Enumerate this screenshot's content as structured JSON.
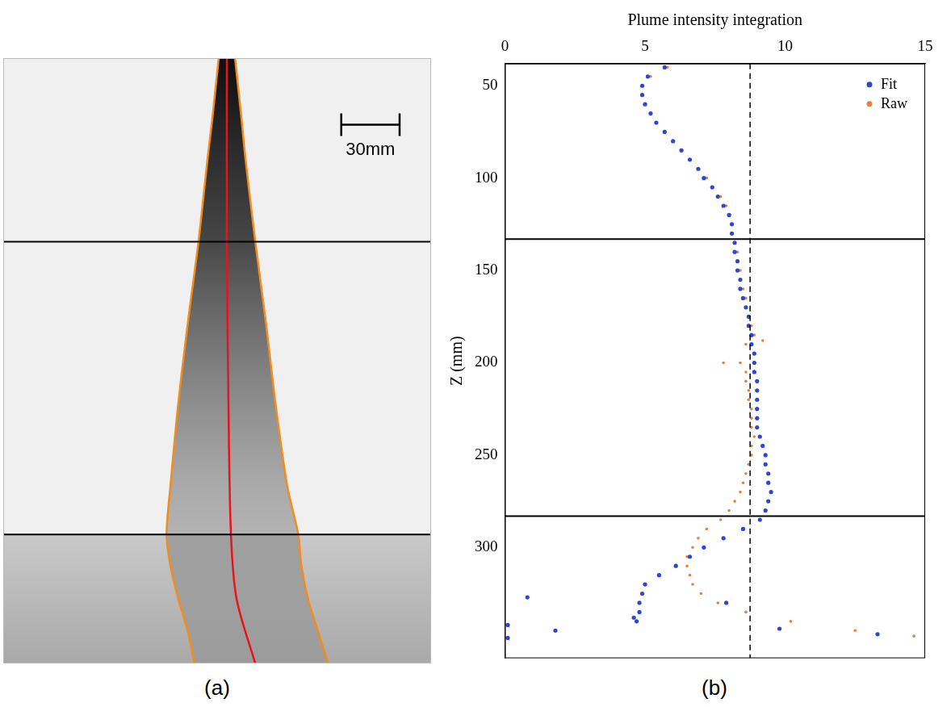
{
  "chart_data": [
    {
      "type": "scatter",
      "panel_label": "(a)",
      "tick_labels": false,
      "grid": false,
      "xlim": [
        -115,
        105
      ],
      "ylim": [
        349,
        39
      ],
      "hlines": [
        133,
        283
      ],
      "scale_bar": {
        "length": 30,
        "label": "30mm"
      },
      "series": [
        {
          "color": "#f28c1c",
          "marker": "none",
          "line_style": "solid",
          "x": [
            -4.2,
            -7.5,
            -10,
            -14.6,
            -20,
            -25,
            -29,
            -31,
            -29,
            -25,
            -20,
            -16.7
          ],
          "y": [
            39,
            70,
            91,
            133,
            174,
            216,
            258,
            283,
            299,
            316,
            333,
            349
          ]
        },
        {
          "color": "#f28c1c",
          "marker": "none",
          "line_style": "solid",
          "x": [
            4.2,
            7.5,
            9.6,
            14.6,
            20,
            25,
            31,
            36.7,
            38.3,
            41.7,
            47,
            52
          ],
          "y": [
            39,
            70,
            91,
            133,
            174,
            216,
            258,
            283,
            299,
            316,
            333,
            349
          ]
        },
        {
          "color": "#e8141c",
          "marker": "none",
          "line_style": "solid",
          "x": [
            0,
            0,
            0.8,
            2.1,
            5,
            14.6
          ],
          "y": [
            39,
            133,
            216,
            283,
            316,
            349
          ]
        }
      ]
    },
    {
      "type": "scatter",
      "panel_label": "(b)",
      "x_label": "Plume intensity integration",
      "y_label": "Z (mm)",
      "xlim": [
        0,
        15
      ],
      "xticks": [
        0,
        5,
        10,
        15
      ],
      "ylim": [
        360,
        38
      ],
      "yticks": [
        50,
        100,
        150,
        200,
        250,
        300
      ],
      "grid": false,
      "legend": "upper right",
      "hlines": [
        133,
        283
      ],
      "vlines": [
        8.75
      ],
      "series": [
        {
          "name": "Fit",
          "color": "#2f45d4",
          "marker": "circle",
          "x": [
            5.7,
            5.1,
            4.9,
            4.9,
            5.0,
            5.2,
            5.4,
            5.7,
            6.0,
            6.3,
            6.6,
            6.9,
            7.1,
            7.4,
            7.6,
            7.8,
            8.0,
            8.1,
            8.1,
            8.2,
            8.2,
            8.3,
            8.3,
            8.4,
            8.4,
            8.5,
            8.6,
            8.7,
            8.7,
            8.8,
            8.8,
            8.9,
            8.9,
            8.9,
            9.0,
            9.0,
            9.0,
            9.0,
            9.0,
            9.0,
            9.1,
            9.2,
            9.3,
            9.3,
            9.4,
            9.4,
            9.5,
            9.4,
            9.3,
            9.1,
            8.5,
            7.8,
            7.1,
            6.6,
            6.1,
            5.5,
            5.0,
            4.9,
            4.8,
            4.8,
            4.6,
            4.7,
            0.1,
            1.8,
            0.8,
            9.8,
            13.3,
            0.1,
            7.9
          ],
          "y": [
            40,
            45,
            50,
            55,
            60,
            65,
            70,
            75,
            80,
            85,
            90,
            95,
            100,
            105,
            110,
            115,
            120,
            125,
            130,
            135,
            140,
            145,
            150,
            155,
            160,
            165,
            170,
            175,
            180,
            185,
            190,
            195,
            200,
            205,
            210,
            215,
            220,
            225,
            230,
            235,
            240,
            245,
            250,
            255,
            260,
            265,
            270,
            275,
            280,
            285,
            290,
            295,
            300,
            305,
            310,
            315,
            320,
            325,
            330,
            335,
            338,
            340,
            342,
            345,
            327,
            344,
            347,
            349,
            330
          ]
        },
        {
          "name": "Raw",
          "color": "#e8803a",
          "marker": "circle",
          "x": [
            5.8,
            5.2,
            4.9,
            4.9,
            5.0,
            5.2,
            5.4,
            5.7,
            6.0,
            6.3,
            6.6,
            6.9,
            7.2,
            7.4,
            7.7,
            7.9,
            8.0,
            8.1,
            8.1,
            8.2,
            8.3,
            8.3,
            8.4,
            8.4,
            8.5,
            8.6,
            8.6,
            8.7,
            8.8,
            8.9,
            8.6,
            8.9,
            8.4,
            8.6,
            8.6,
            8.7,
            8.7,
            8.8,
            8.8,
            8.8,
            8.9,
            8.8,
            8.8,
            8.7,
            8.6,
            8.5,
            8.4,
            8.2,
            8.0,
            7.7,
            7.2,
            6.9,
            6.7,
            6.5,
            6.5,
            6.6,
            6.7,
            7.0,
            7.6,
            8.6,
            10.2,
            12.5,
            14.6,
            7.8,
            9.2
          ],
          "y": [
            40,
            45,
            50,
            55,
            60,
            65,
            70,
            75,
            80,
            85,
            90,
            95,
            100,
            105,
            110,
            115,
            120,
            125,
            130,
            135,
            140,
            145,
            150,
            155,
            160,
            165,
            170,
            175,
            180,
            185,
            190,
            195,
            200,
            205,
            210,
            215,
            220,
            225,
            230,
            235,
            240,
            245,
            250,
            255,
            260,
            265,
            270,
            275,
            280,
            285,
            290,
            295,
            300,
            305,
            310,
            315,
            320,
            325,
            330,
            335,
            340,
            345,
            348,
            200,
            188
          ]
        }
      ]
    }
  ]
}
